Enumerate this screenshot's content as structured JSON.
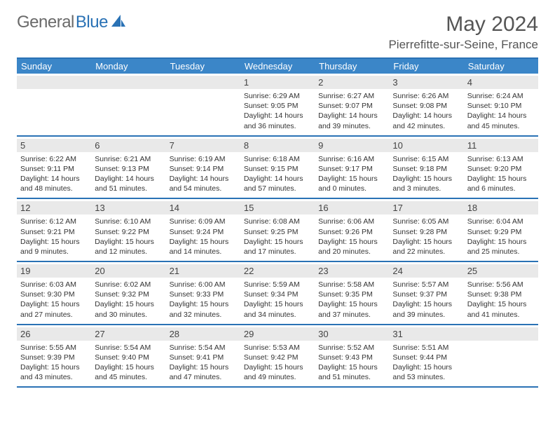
{
  "brand": {
    "part1": "General",
    "part2": "Blue"
  },
  "title": "May 2024",
  "location": "Pierrefitte-sur-Seine, France",
  "colors": {
    "header_bg": "#3b86c8",
    "border": "#2a72b5",
    "daynum_bg": "#e9e9e9",
    "text": "#333333",
    "title_text": "#555555"
  },
  "days_of_week": [
    "Sunday",
    "Monday",
    "Tuesday",
    "Wednesday",
    "Thursday",
    "Friday",
    "Saturday"
  ],
  "weeks": [
    [
      {
        "n": "",
        "sunrise": "",
        "sunset": "",
        "daylight": ""
      },
      {
        "n": "",
        "sunrise": "",
        "sunset": "",
        "daylight": ""
      },
      {
        "n": "",
        "sunrise": "",
        "sunset": "",
        "daylight": ""
      },
      {
        "n": "1",
        "sunrise": "Sunrise: 6:29 AM",
        "sunset": "Sunset: 9:05 PM",
        "daylight": "Daylight: 14 hours and 36 minutes."
      },
      {
        "n": "2",
        "sunrise": "Sunrise: 6:27 AM",
        "sunset": "Sunset: 9:07 PM",
        "daylight": "Daylight: 14 hours and 39 minutes."
      },
      {
        "n": "3",
        "sunrise": "Sunrise: 6:26 AM",
        "sunset": "Sunset: 9:08 PM",
        "daylight": "Daylight: 14 hours and 42 minutes."
      },
      {
        "n": "4",
        "sunrise": "Sunrise: 6:24 AM",
        "sunset": "Sunset: 9:10 PM",
        "daylight": "Daylight: 14 hours and 45 minutes."
      }
    ],
    [
      {
        "n": "5",
        "sunrise": "Sunrise: 6:22 AM",
        "sunset": "Sunset: 9:11 PM",
        "daylight": "Daylight: 14 hours and 48 minutes."
      },
      {
        "n": "6",
        "sunrise": "Sunrise: 6:21 AM",
        "sunset": "Sunset: 9:13 PM",
        "daylight": "Daylight: 14 hours and 51 minutes."
      },
      {
        "n": "7",
        "sunrise": "Sunrise: 6:19 AM",
        "sunset": "Sunset: 9:14 PM",
        "daylight": "Daylight: 14 hours and 54 minutes."
      },
      {
        "n": "8",
        "sunrise": "Sunrise: 6:18 AM",
        "sunset": "Sunset: 9:15 PM",
        "daylight": "Daylight: 14 hours and 57 minutes."
      },
      {
        "n": "9",
        "sunrise": "Sunrise: 6:16 AM",
        "sunset": "Sunset: 9:17 PM",
        "daylight": "Daylight: 15 hours and 0 minutes."
      },
      {
        "n": "10",
        "sunrise": "Sunrise: 6:15 AM",
        "sunset": "Sunset: 9:18 PM",
        "daylight": "Daylight: 15 hours and 3 minutes."
      },
      {
        "n": "11",
        "sunrise": "Sunrise: 6:13 AM",
        "sunset": "Sunset: 9:20 PM",
        "daylight": "Daylight: 15 hours and 6 minutes."
      }
    ],
    [
      {
        "n": "12",
        "sunrise": "Sunrise: 6:12 AM",
        "sunset": "Sunset: 9:21 PM",
        "daylight": "Daylight: 15 hours and 9 minutes."
      },
      {
        "n": "13",
        "sunrise": "Sunrise: 6:10 AM",
        "sunset": "Sunset: 9:22 PM",
        "daylight": "Daylight: 15 hours and 12 minutes."
      },
      {
        "n": "14",
        "sunrise": "Sunrise: 6:09 AM",
        "sunset": "Sunset: 9:24 PM",
        "daylight": "Daylight: 15 hours and 14 minutes."
      },
      {
        "n": "15",
        "sunrise": "Sunrise: 6:08 AM",
        "sunset": "Sunset: 9:25 PM",
        "daylight": "Daylight: 15 hours and 17 minutes."
      },
      {
        "n": "16",
        "sunrise": "Sunrise: 6:06 AM",
        "sunset": "Sunset: 9:26 PM",
        "daylight": "Daylight: 15 hours and 20 minutes."
      },
      {
        "n": "17",
        "sunrise": "Sunrise: 6:05 AM",
        "sunset": "Sunset: 9:28 PM",
        "daylight": "Daylight: 15 hours and 22 minutes."
      },
      {
        "n": "18",
        "sunrise": "Sunrise: 6:04 AM",
        "sunset": "Sunset: 9:29 PM",
        "daylight": "Daylight: 15 hours and 25 minutes."
      }
    ],
    [
      {
        "n": "19",
        "sunrise": "Sunrise: 6:03 AM",
        "sunset": "Sunset: 9:30 PM",
        "daylight": "Daylight: 15 hours and 27 minutes."
      },
      {
        "n": "20",
        "sunrise": "Sunrise: 6:02 AM",
        "sunset": "Sunset: 9:32 PM",
        "daylight": "Daylight: 15 hours and 30 minutes."
      },
      {
        "n": "21",
        "sunrise": "Sunrise: 6:00 AM",
        "sunset": "Sunset: 9:33 PM",
        "daylight": "Daylight: 15 hours and 32 minutes."
      },
      {
        "n": "22",
        "sunrise": "Sunrise: 5:59 AM",
        "sunset": "Sunset: 9:34 PM",
        "daylight": "Daylight: 15 hours and 34 minutes."
      },
      {
        "n": "23",
        "sunrise": "Sunrise: 5:58 AM",
        "sunset": "Sunset: 9:35 PM",
        "daylight": "Daylight: 15 hours and 37 minutes."
      },
      {
        "n": "24",
        "sunrise": "Sunrise: 5:57 AM",
        "sunset": "Sunset: 9:37 PM",
        "daylight": "Daylight: 15 hours and 39 minutes."
      },
      {
        "n": "25",
        "sunrise": "Sunrise: 5:56 AM",
        "sunset": "Sunset: 9:38 PM",
        "daylight": "Daylight: 15 hours and 41 minutes."
      }
    ],
    [
      {
        "n": "26",
        "sunrise": "Sunrise: 5:55 AM",
        "sunset": "Sunset: 9:39 PM",
        "daylight": "Daylight: 15 hours and 43 minutes."
      },
      {
        "n": "27",
        "sunrise": "Sunrise: 5:54 AM",
        "sunset": "Sunset: 9:40 PM",
        "daylight": "Daylight: 15 hours and 45 minutes."
      },
      {
        "n": "28",
        "sunrise": "Sunrise: 5:54 AM",
        "sunset": "Sunset: 9:41 PM",
        "daylight": "Daylight: 15 hours and 47 minutes."
      },
      {
        "n": "29",
        "sunrise": "Sunrise: 5:53 AM",
        "sunset": "Sunset: 9:42 PM",
        "daylight": "Daylight: 15 hours and 49 minutes."
      },
      {
        "n": "30",
        "sunrise": "Sunrise: 5:52 AM",
        "sunset": "Sunset: 9:43 PM",
        "daylight": "Daylight: 15 hours and 51 minutes."
      },
      {
        "n": "31",
        "sunrise": "Sunrise: 5:51 AM",
        "sunset": "Sunset: 9:44 PM",
        "daylight": "Daylight: 15 hours and 53 minutes."
      },
      {
        "n": "",
        "sunrise": "",
        "sunset": "",
        "daylight": ""
      }
    ]
  ]
}
